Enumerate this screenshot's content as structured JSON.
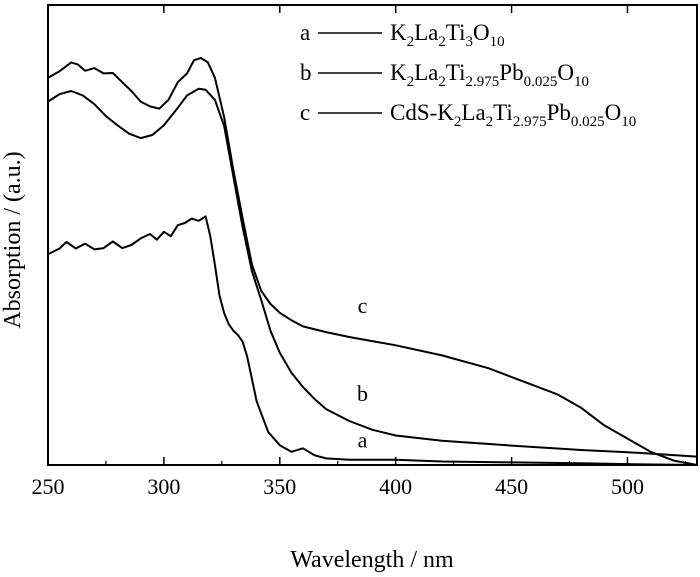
{
  "chart_data": {
    "type": "line",
    "xlabel": "Wavelength / nm",
    "ylabel": "Absorption / (a.u.)",
    "xlim": [
      250,
      530
    ],
    "ylim": [
      0,
      1
    ],
    "xticks": [
      "250",
      "300",
      "350",
      "400",
      "450",
      "500"
    ],
    "yticks_shown": false,
    "grid": false,
    "legend_position": "top-right",
    "legend": [
      {
        "letter": "a",
        "parts": [
          {
            "t": "K"
          },
          {
            "t": "2",
            "sub": true
          },
          {
            "t": "La"
          },
          {
            "t": "2",
            "sub": true
          },
          {
            "t": "Ti"
          },
          {
            "t": "3",
            "sub": true
          },
          {
            "t": "O"
          },
          {
            "t": "10",
            "sub": true
          }
        ]
      },
      {
        "letter": "b",
        "parts": [
          {
            "t": "K"
          },
          {
            "t": "2",
            "sub": true
          },
          {
            "t": "La"
          },
          {
            "t": "2",
            "sub": true
          },
          {
            "t": "Ti"
          },
          {
            "t": "2.975",
            "sub": true
          },
          {
            "t": "Pb"
          },
          {
            "t": "0.025",
            "sub": true
          },
          {
            "t": "O"
          },
          {
            "t": "10",
            "sub": true
          }
        ]
      },
      {
        "letter": "c",
        "parts": [
          {
            "t": "CdS-K"
          },
          {
            "t": "2",
            "sub": true
          },
          {
            "t": "La"
          },
          {
            "t": "2",
            "sub": true
          },
          {
            "t": "Ti"
          },
          {
            "t": "2.975",
            "sub": true
          },
          {
            "t": "Pb"
          },
          {
            "t": "0.025",
            "sub": true
          },
          {
            "t": "O"
          },
          {
            "t": "10",
            "sub": true
          }
        ]
      }
    ],
    "series": [
      {
        "name": "a",
        "x": [
          250,
          255,
          258,
          262,
          266,
          270,
          274,
          278,
          282,
          286,
          290,
          294,
          297,
          300,
          303,
          306,
          309,
          312,
          315,
          318,
          320,
          322,
          324,
          326,
          328,
          330,
          332,
          334,
          336,
          338,
          340,
          345,
          350,
          355,
          360,
          365,
          370,
          380,
          400,
          420,
          450,
          480,
          500,
          530
        ],
        "y": [
          0.479,
          0.492,
          0.507,
          0.492,
          0.503,
          0.49,
          0.493,
          0.508,
          0.493,
          0.5,
          0.515,
          0.525,
          0.512,
          0.53,
          0.52,
          0.545,
          0.55,
          0.56,
          0.555,
          0.565,
          0.52,
          0.455,
          0.385,
          0.345,
          0.32,
          0.305,
          0.295,
          0.28,
          0.245,
          0.195,
          0.145,
          0.075,
          0.045,
          0.03,
          0.038,
          0.022,
          0.015,
          0.012,
          0.012,
          0.008,
          0.006,
          0.004,
          0.002,
          0.0
        ]
      },
      {
        "name": "b",
        "x": [
          250,
          255,
          260,
          265,
          270,
          275,
          280,
          285,
          290,
          295,
          300,
          305,
          310,
          315,
          318,
          322,
          326,
          330,
          334,
          338,
          342,
          346,
          350,
          355,
          360,
          365,
          370,
          380,
          390,
          400,
          420,
          450,
          480,
          500,
          530
        ],
        "y": [
          0.826,
          0.843,
          0.85,
          0.84,
          0.82,
          0.793,
          0.772,
          0.753,
          0.743,
          0.75,
          0.772,
          0.805,
          0.84,
          0.855,
          0.853,
          0.83,
          0.77,
          0.655,
          0.54,
          0.44,
          0.375,
          0.305,
          0.255,
          0.21,
          0.177,
          0.15,
          0.127,
          0.1,
          0.08,
          0.067,
          0.055,
          0.044,
          0.034,
          0.029,
          0.019
        ]
      },
      {
        "name": "c",
        "x": [
          250,
          255,
          260,
          263,
          266,
          270,
          274,
          278,
          282,
          286,
          290,
          294,
          298,
          302,
          306,
          310,
          313,
          316,
          319,
          322,
          326,
          330,
          334,
          338,
          342,
          346,
          350,
          355,
          360,
          370,
          380,
          400,
          420,
          440,
          460,
          470,
          480,
          490,
          500,
          510,
          520,
          530
        ],
        "y": [
          0.88,
          0.895,
          0.915,
          0.91,
          0.896,
          0.902,
          0.89,
          0.891,
          0.87,
          0.85,
          0.826,
          0.815,
          0.81,
          0.83,
          0.87,
          0.89,
          0.92,
          0.925,
          0.915,
          0.88,
          0.79,
          0.67,
          0.56,
          0.455,
          0.396,
          0.366,
          0.346,
          0.329,
          0.315,
          0.302,
          0.291,
          0.272,
          0.249,
          0.22,
          0.18,
          0.16,
          0.13,
          0.09,
          0.06,
          0.03,
          0.01,
          0.0
        ]
      }
    ],
    "curve_labels": [
      {
        "text": "c",
        "x": 390,
        "y": 0.345
      },
      {
        "text": "b",
        "x": 390,
        "y": 0.145
      },
      {
        "text": "a",
        "x": 390,
        "y": 0.04
      }
    ]
  }
}
